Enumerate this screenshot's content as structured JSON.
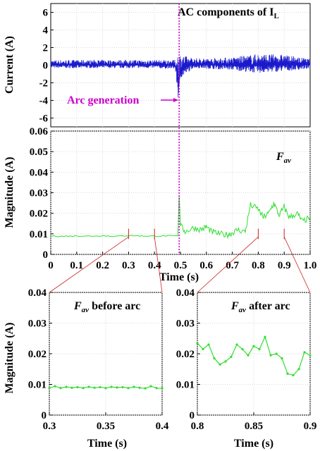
{
  "colors": {
    "current": "#1a1acc",
    "magnitude": "#33dd33",
    "arc_marker": "#cc00cc",
    "zoom_lines": "#cc2222"
  },
  "chart_data": [
    {
      "id": "current",
      "type": "line",
      "ylabel": "Current (A)",
      "ylim": [
        -7,
        7
      ],
      "xlim": [
        0,
        1
      ],
      "yticks": [
        "6",
        "4",
        "2",
        "0",
        "-2",
        "-4",
        "-6"
      ],
      "grid": true,
      "annotation_title": "AC components of I",
      "annotation_title_sub": "L",
      "annotation_arrow": "Arc generation",
      "arc_time": 0.495,
      "series": [
        {
          "x": [
            0,
            0.1,
            0.2,
            0.3,
            0.4,
            0.48,
            0.495,
            0.5,
            0.55,
            0.6,
            0.7,
            0.8,
            0.9,
            1.0
          ],
          "y_min": [
            -0.5,
            -0.5,
            -0.5,
            -0.5,
            -0.5,
            -0.6,
            -6.0,
            -2.0,
            -0.5,
            -0.6,
            -0.8,
            -1.3,
            -1.0,
            -0.6
          ],
          "y_max": [
            0.6,
            0.6,
            0.6,
            0.6,
            0.6,
            0.6,
            1.8,
            1.2,
            0.8,
            0.8,
            0.9,
            1.3,
            1.2,
            0.7
          ]
        }
      ]
    },
    {
      "id": "magnitude",
      "type": "line",
      "ylabel": "Magnitude (A)",
      "xlabel": "Time (s)",
      "ylim": [
        0,
        0.06
      ],
      "xlim": [
        0,
        1
      ],
      "yticks": [
        "0.06",
        "0.05",
        "0.04",
        "0.03",
        "0.02",
        "0.01",
        "0"
      ],
      "xticks": [
        "0",
        "0.1",
        "0.2",
        "0.3",
        "0.4",
        "0.5",
        "0.6",
        "0.7",
        "0.8",
        "0.9",
        "1.0"
      ],
      "grid": true,
      "legend_main": "F",
      "legend_sub": "av",
      "series": [
        {
          "x": [
            0,
            0.05,
            0.1,
            0.15,
            0.2,
            0.25,
            0.3,
            0.35,
            0.4,
            0.45,
            0.49,
            0.495,
            0.5,
            0.52,
            0.55,
            0.58,
            0.6,
            0.62,
            0.65,
            0.68,
            0.7,
            0.72,
            0.75,
            0.77,
            0.8,
            0.82,
            0.84,
            0.86,
            0.88,
            0.9,
            0.92,
            0.95,
            0.97,
            1.0
          ],
          "y": [
            0.009,
            0.0088,
            0.009,
            0.0089,
            0.0091,
            0.0088,
            0.0092,
            0.009,
            0.0089,
            0.009,
            0.009,
            0.029,
            0.014,
            0.011,
            0.013,
            0.012,
            0.0135,
            0.011,
            0.01,
            0.0095,
            0.0105,
            0.012,
            0.011,
            0.024,
            0.022,
            0.018,
            0.02,
            0.025,
            0.019,
            0.023,
            0.018,
            0.02,
            0.016,
            0.018
          ]
        }
      ]
    },
    {
      "id": "before",
      "type": "line",
      "ylabel": "Magnitude (A)",
      "xlabel": "Time (s)",
      "xlim": [
        0.3,
        0.4
      ],
      "ylim": [
        0,
        0.04
      ],
      "xticks": [
        "0.3",
        "0.35",
        "0.4"
      ],
      "yticks": [
        "0.04",
        "0.03",
        "0.02",
        "0.01",
        "0"
      ],
      "grid": true,
      "title_main": "F",
      "title_sub": "av",
      "title_rest": " before arc",
      "series": [
        {
          "x": [
            0.3,
            0.305,
            0.31,
            0.315,
            0.32,
            0.325,
            0.33,
            0.335,
            0.34,
            0.345,
            0.35,
            0.355,
            0.36,
            0.365,
            0.37,
            0.375,
            0.38,
            0.385,
            0.39,
            0.395,
            0.4
          ],
          "y": [
            0.0088,
            0.0094,
            0.0088,
            0.0092,
            0.0089,
            0.0091,
            0.0088,
            0.0092,
            0.0089,
            0.0091,
            0.0088,
            0.0092,
            0.009,
            0.0091,
            0.0088,
            0.0092,
            0.0089,
            0.0087,
            0.0094,
            0.0088,
            0.0087
          ]
        }
      ]
    },
    {
      "id": "after",
      "type": "line",
      "xlabel": "Time (s)",
      "xlim": [
        0.8,
        0.9
      ],
      "ylim": [
        0,
        0.04
      ],
      "xticks": [
        "0.8",
        "0.85",
        "0.9"
      ],
      "yticks": [
        "0.04",
        "0.03",
        "0.02",
        "0.01",
        "0"
      ],
      "grid": true,
      "title_main": "F",
      "title_sub": "av",
      "title_rest": " after arc",
      "series": [
        {
          "x": [
            0.8,
            0.805,
            0.81,
            0.815,
            0.82,
            0.825,
            0.83,
            0.835,
            0.84,
            0.845,
            0.85,
            0.855,
            0.86,
            0.865,
            0.87,
            0.875,
            0.88,
            0.885,
            0.89,
            0.895,
            0.9
          ],
          "y": [
            0.0235,
            0.0215,
            0.023,
            0.0185,
            0.0165,
            0.0175,
            0.019,
            0.023,
            0.0215,
            0.0195,
            0.0225,
            0.0215,
            0.0255,
            0.0195,
            0.02,
            0.0185,
            0.0135,
            0.013,
            0.015,
            0.0205,
            0.0195
          ]
        }
      ]
    }
  ]
}
